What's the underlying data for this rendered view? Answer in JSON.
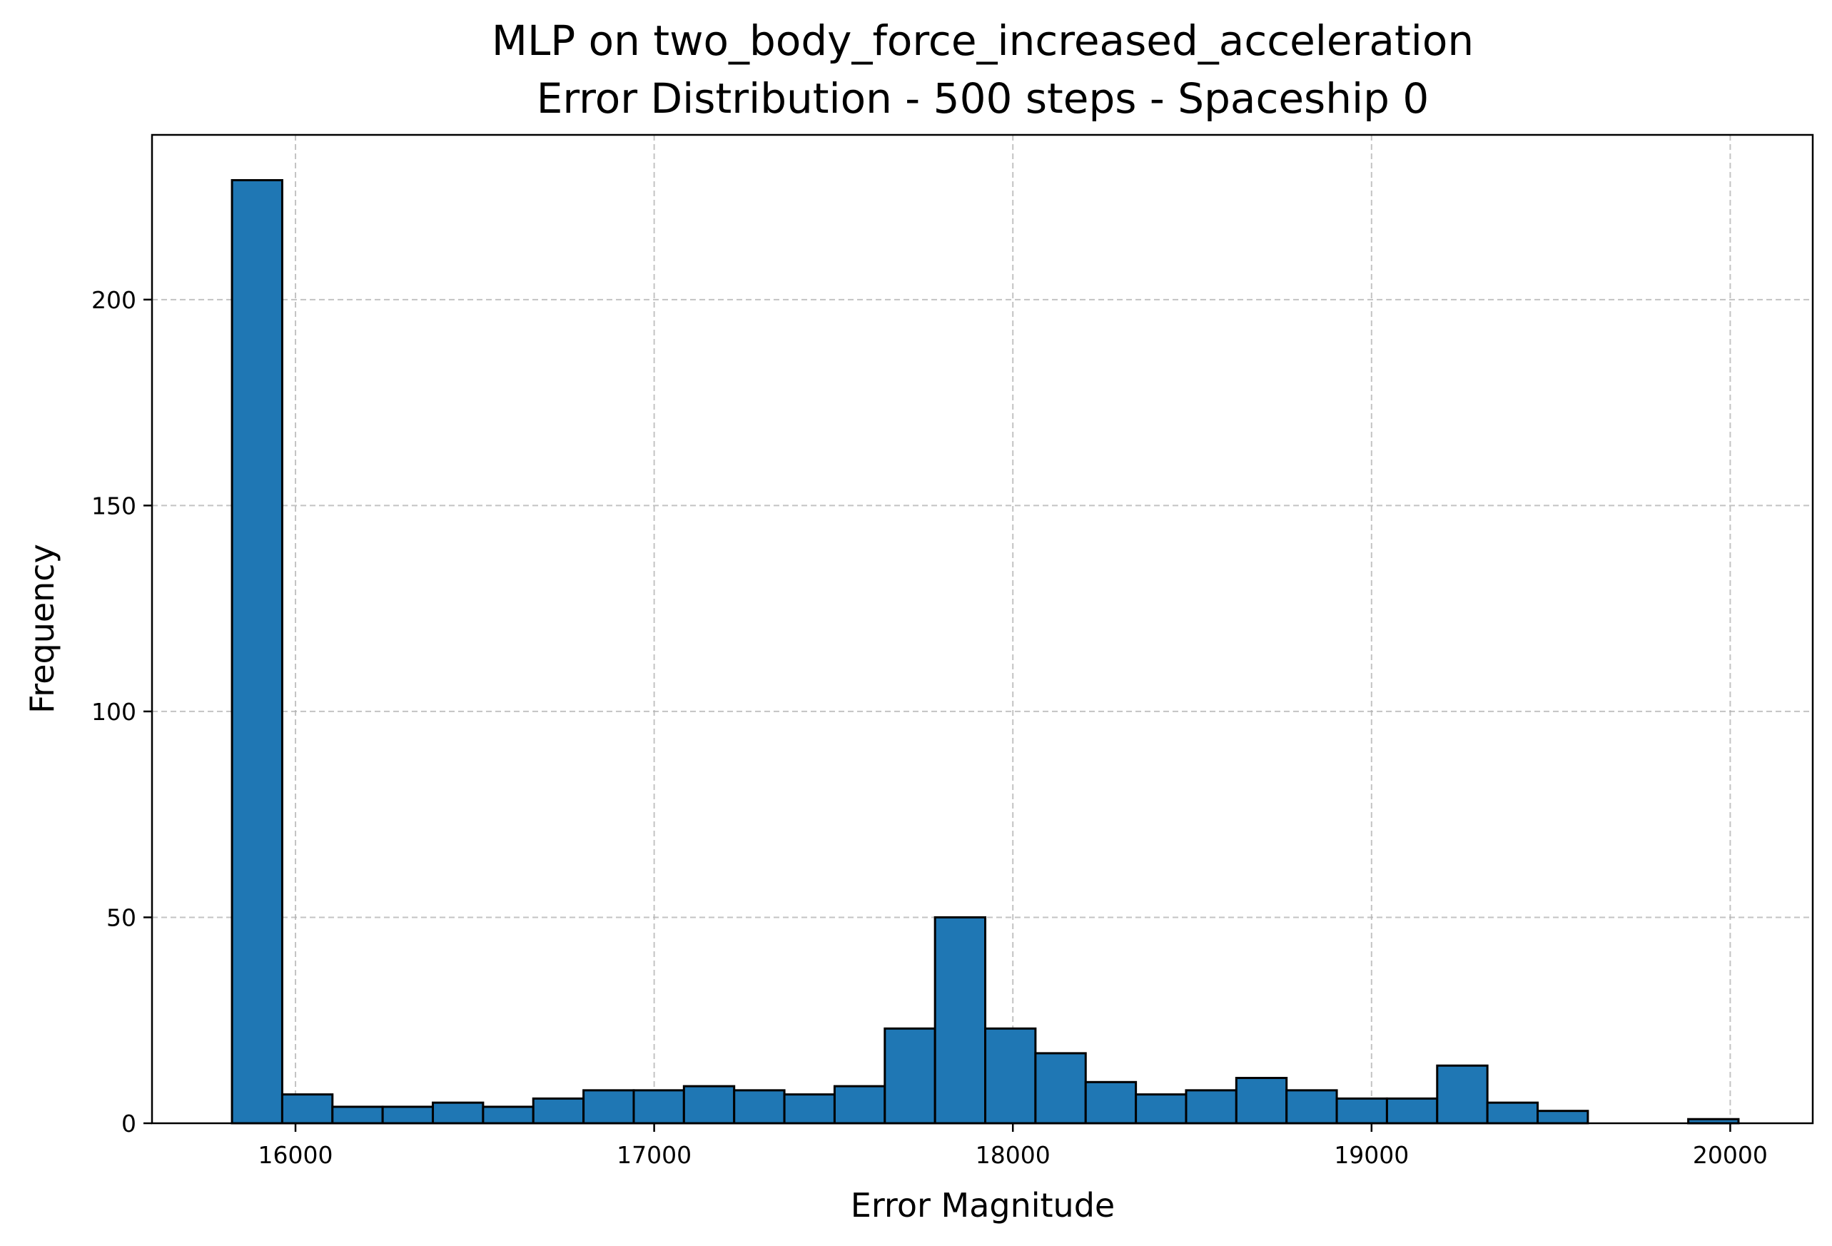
{
  "chart_data": {
    "type": "histogram",
    "title_lines": [
      "MLP on two_body_force_increased_acceleration",
      "Error Distribution - 500 steps - Spaceship 0"
    ],
    "xlabel": "Error Magnitude",
    "ylabel": "Frequency",
    "xlim": [
      15600,
      20230
    ],
    "ylim": [
      0,
      240
    ],
    "xticks": [
      16000,
      17000,
      18000,
      19000,
      20000
    ],
    "yticks": [
      0,
      50,
      100,
      150,
      200
    ],
    "grid": true,
    "bar_color": "#1f77b4",
    "edge_color": "#000000",
    "bins": [
      {
        "x0": 15823,
        "x1": 15963,
        "value": 229
      },
      {
        "x0": 15963,
        "x1": 16103,
        "value": 7
      },
      {
        "x0": 16103,
        "x1": 16243,
        "value": 4
      },
      {
        "x0": 16243,
        "x1": 16383,
        "value": 4
      },
      {
        "x0": 16383,
        "x1": 16523,
        "value": 5
      },
      {
        "x0": 16523,
        "x1": 16663,
        "value": 4
      },
      {
        "x0": 16663,
        "x1": 16803,
        "value": 6
      },
      {
        "x0": 16803,
        "x1": 16943,
        "value": 8
      },
      {
        "x0": 16943,
        "x1": 17083,
        "value": 8
      },
      {
        "x0": 17083,
        "x1": 17223,
        "value": 9
      },
      {
        "x0": 17223,
        "x1": 17363,
        "value": 8
      },
      {
        "x0": 17363,
        "x1": 17503,
        "value": 7
      },
      {
        "x0": 17503,
        "x1": 17643,
        "value": 9
      },
      {
        "x0": 17643,
        "x1": 17783,
        "value": 23
      },
      {
        "x0": 17783,
        "x1": 17923,
        "value": 50
      },
      {
        "x0": 17923,
        "x1": 18063,
        "value": 23
      },
      {
        "x0": 18063,
        "x1": 18203,
        "value": 17
      },
      {
        "x0": 18203,
        "x1": 18343,
        "value": 10
      },
      {
        "x0": 18343,
        "x1": 18483,
        "value": 7
      },
      {
        "x0": 18483,
        "x1": 18623,
        "value": 8
      },
      {
        "x0": 18623,
        "x1": 18763,
        "value": 11
      },
      {
        "x0": 18763,
        "x1": 18903,
        "value": 8
      },
      {
        "x0": 18903,
        "x1": 19043,
        "value": 6
      },
      {
        "x0": 19043,
        "x1": 19183,
        "value": 6
      },
      {
        "x0": 19183,
        "x1": 19323,
        "value": 14
      },
      {
        "x0": 19323,
        "x1": 19463,
        "value": 5
      },
      {
        "x0": 19463,
        "x1": 19603,
        "value": 3
      },
      {
        "x0": 19603,
        "x1": 19743,
        "value": 0
      },
      {
        "x0": 19743,
        "x1": 19883,
        "value": 0
      },
      {
        "x0": 19883,
        "x1": 20023,
        "value": 1
      }
    ]
  }
}
